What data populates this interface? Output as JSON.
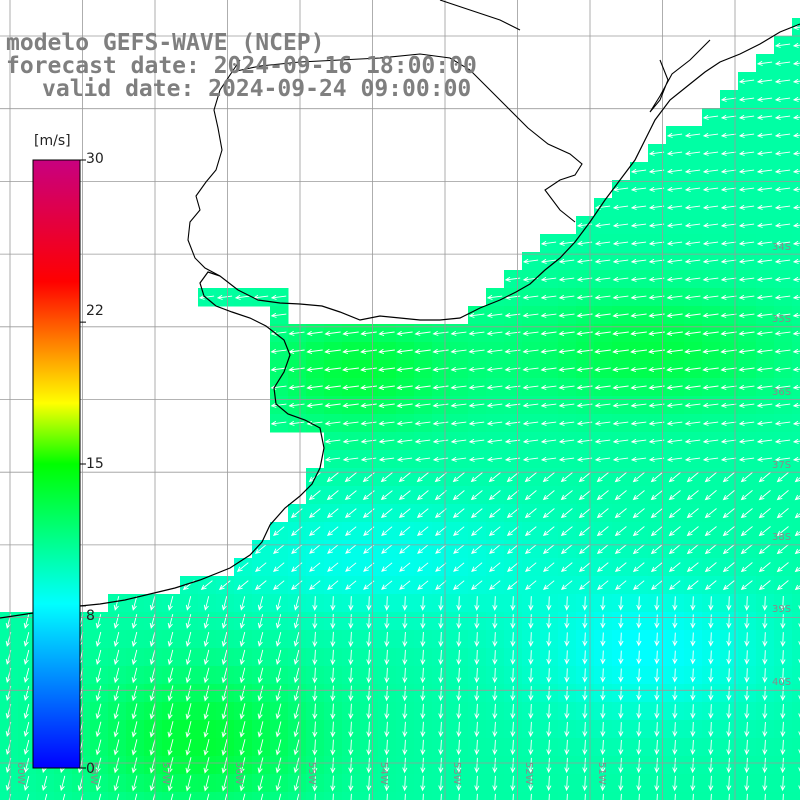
{
  "header": {
    "line1": "modelo GEFS-WAVE (NCEP)",
    "line2": "forecast date: 2024-09-16 18:00:00",
    "line3": "valid date: 2024-09-24 09:00:00"
  },
  "colorbar": {
    "unit": "[m/s]",
    "min": 0,
    "max": 30,
    "tick_labels": [
      "30",
      "22",
      "15",
      "8",
      "0"
    ],
    "tick_values": [
      30,
      22,
      15,
      8,
      0
    ],
    "colors": [
      "#0000ff",
      "#00ffff",
      "#00ff00",
      "#ffff00",
      "#ff0000",
      "#cc0080"
    ]
  },
  "map": {
    "lat_labels": [
      "34S",
      "35S",
      "36S",
      "37S",
      "38S",
      "39S",
      "40S"
    ],
    "lon_labels": [
      "60W",
      "58W",
      "57W",
      "56W",
      "55W",
      "54W",
      "53W",
      "52W",
      "51W"
    ],
    "arrow_color": "#ffffff",
    "coast_color": "#000000",
    "grid_color": "#9a9a9a"
  }
}
